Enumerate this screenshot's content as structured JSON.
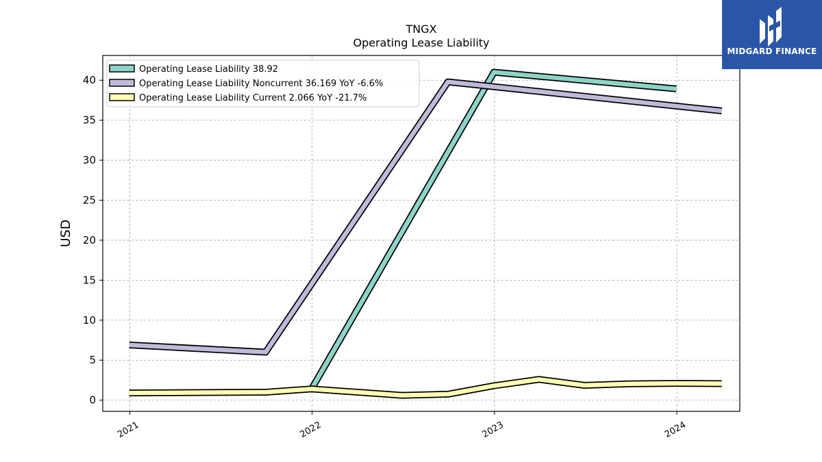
{
  "chart_data": {
    "type": "line",
    "title": "TNGX",
    "subtitle": "Operating Lease Liability",
    "ylabel": "USD",
    "xlabel": "",
    "ylim": [
      -1.4,
      43.1
    ],
    "xlim": [
      "2020-11-08",
      "2024-05-06"
    ],
    "yticks": [
      0,
      5,
      10,
      15,
      20,
      25,
      30,
      35,
      40
    ],
    "xticks": [
      "2021-01-01",
      "2022-01-01",
      "2023-01-01",
      "2024-01-01"
    ],
    "xtick_labels": [
      "2021",
      "2022",
      "2023",
      "2024"
    ],
    "grid": true,
    "legend_position": "top-left",
    "series": [
      {
        "name": "Operating Lease Liability",
        "legend_label": "Operating Lease Liability  38.92",
        "color": "#8dd3c7",
        "x": [
          "2021-12-31",
          "2022-12-31",
          "2023-12-31"
        ],
        "y": [
          1.4,
          41.0,
          38.92
        ]
      },
      {
        "name": "Operating Lease Liability Noncurrent",
        "legend_label": "Operating Lease Liability Noncurrent  36.169 YoY -6.6%",
        "color": "#bebada",
        "x": [
          "2020-12-31",
          "2021-09-30",
          "2022-09-30",
          "2024-03-31"
        ],
        "y": [
          6.9,
          6.0,
          39.8,
          36.169
        ]
      },
      {
        "name": "Operating Lease Liability Current",
        "legend_label": "Operating Lease Liability Current  2.066 YoY -21.7%",
        "color": "#ffffb3",
        "x": [
          "2020-12-31",
          "2021-09-30",
          "2021-12-31",
          "2022-06-30",
          "2022-09-30",
          "2022-12-31",
          "2023-03-31",
          "2023-06-30",
          "2023-09-30",
          "2023-12-31",
          "2024-03-31"
        ],
        "y": [
          0.9,
          1.0,
          1.4,
          0.6,
          0.75,
          1.8,
          2.6,
          1.85,
          2.05,
          2.1,
          2.066
        ]
      }
    ]
  },
  "logo": {
    "text": "MIDGARD FINANCE",
    "color": "#2a56a8"
  }
}
